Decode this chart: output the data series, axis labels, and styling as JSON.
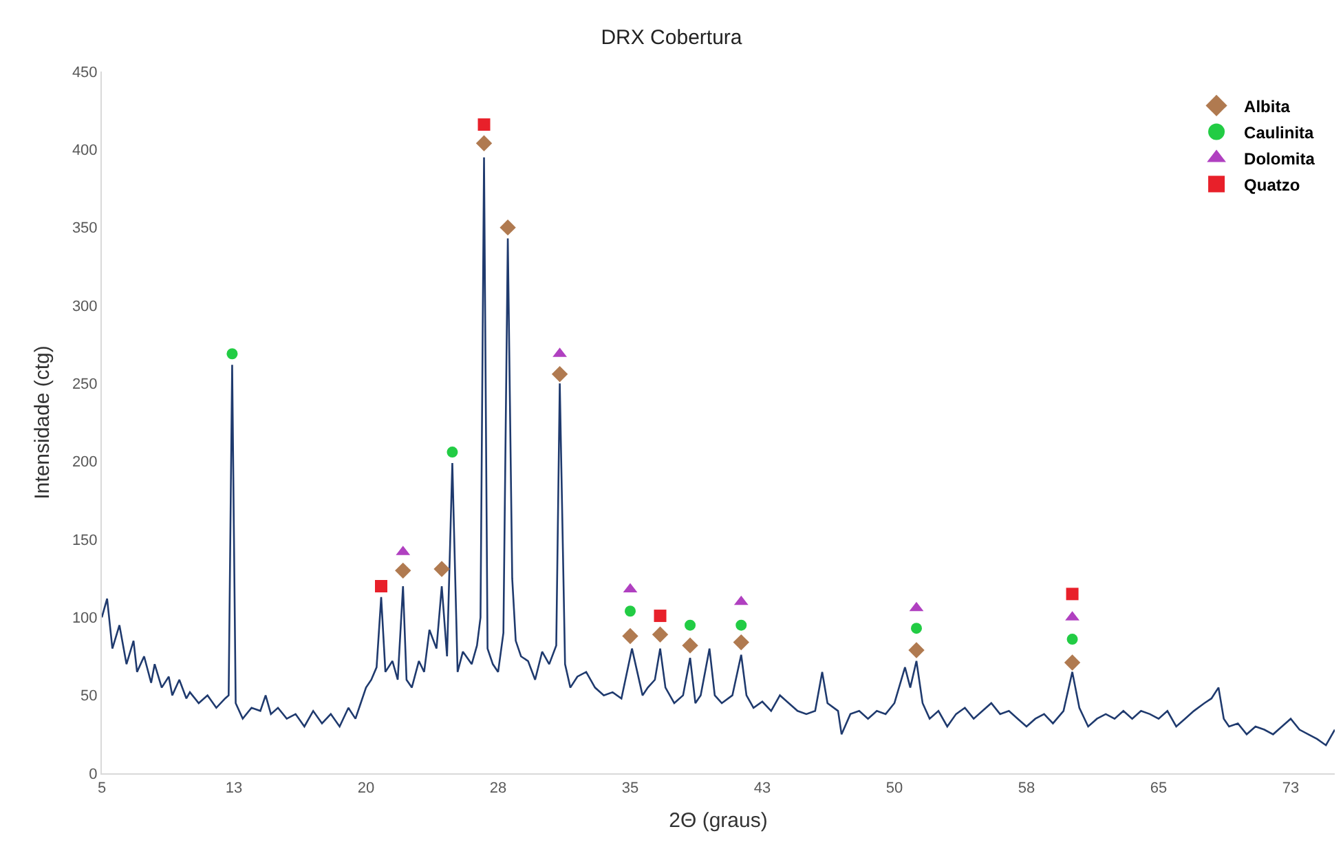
{
  "chart_data": {
    "type": "line",
    "title": "DRX Cobertura",
    "xlabel": "2Θ (graus)",
    "ylabel": "Intensidade (ctg)",
    "xlim": [
      5,
      75
    ],
    "ylim": [
      0,
      450
    ],
    "xticks": [
      5,
      {
        "value": 12.5,
        "label": "13"
      },
      20,
      {
        "value": 27.5,
        "label": "28"
      },
      35,
      {
        "value": 42.5,
        "label": "43"
      },
      50,
      {
        "value": 57.5,
        "label": "58"
      },
      65,
      {
        "value": 72.5,
        "label": "73"
      }
    ],
    "yticks": [
      0,
      50,
      100,
      150,
      200,
      250,
      300,
      350,
      400,
      450
    ],
    "grid": false,
    "legend": "top right",
    "series": [
      {
        "color": "#1f3a6e",
        "marker": "none",
        "line_style": "solid",
        "x": [
          5,
          5.3,
          5.6,
          6,
          6.4,
          6.8,
          7,
          7.4,
          7.8,
          8,
          8.4,
          8.8,
          9,
          9.4,
          9.8,
          10,
          10.5,
          11,
          11.5,
          12,
          12.2,
          12.4,
          12.6,
          13,
          13.5,
          14,
          14.3,
          14.6,
          15,
          15.5,
          16,
          16.5,
          17,
          17.5,
          18,
          18.5,
          19,
          19.4,
          19.7,
          20,
          20.3,
          20.6,
          20.86,
          21.1,
          21.5,
          21.8,
          22.1,
          22.3,
          22.6,
          23,
          23.3,
          23.6,
          24,
          24.3,
          24.6,
          24.9,
          25.2,
          25.5,
          26,
          26.3,
          26.5,
          26.7,
          26.9,
          27.2,
          27.5,
          27.8,
          28.05,
          28.3,
          28.5,
          28.8,
          29.2,
          29.6,
          30,
          30.4,
          30.8,
          31,
          31.3,
          31.6,
          32,
          32.5,
          33,
          33.5,
          34,
          34.5,
          35.1,
          35.4,
          35.7,
          36,
          36.4,
          36.7,
          37,
          37.5,
          38,
          38.4,
          38.7,
          39,
          39.5,
          39.8,
          40.2,
          40.8,
          41.3,
          41.6,
          42,
          42.5,
          43,
          43.5,
          44,
          44.5,
          45,
          45.5,
          45.9,
          46.2,
          46.8,
          47,
          47.5,
          48,
          48.5,
          49,
          49.5,
          50,
          50.6,
          50.9,
          51.25,
          51.6,
          52,
          52.5,
          53,
          53.5,
          54,
          54.5,
          55,
          55.5,
          56,
          56.5,
          57,
          57.5,
          58,
          58.5,
          59,
          59.6,
          60.1,
          60.5,
          61,
          61.5,
          62,
          62.5,
          63,
          63.5,
          64,
          64.5,
          65,
          65.5,
          66,
          66.5,
          67,
          67.6,
          68,
          68.4,
          68.7,
          69,
          69.5,
          70,
          70.5,
          71,
          71.5,
          72,
          72.5,
          73,
          73.5,
          74,
          74.5,
          75
        ],
        "values": [
          100,
          112,
          80,
          95,
          70,
          85,
          65,
          75,
          58,
          70,
          55,
          62,
          50,
          60,
          48,
          52,
          45,
          50,
          42,
          48,
          50,
          262,
          45,
          35,
          42,
          40,
          50,
          38,
          42,
          35,
          38,
          30,
          40,
          32,
          38,
          30,
          42,
          35,
          45,
          55,
          60,
          68,
          113,
          65,
          72,
          60,
          120,
          60,
          55,
          72,
          65,
          92,
          80,
          120,
          75,
          199,
          65,
          78,
          70,
          82,
          100,
          395,
          80,
          70,
          65,
          90,
          343,
          125,
          85,
          75,
          72,
          60,
          78,
          70,
          82,
          250,
          70,
          55,
          62,
          65,
          55,
          50,
          52,
          48,
          80,
          65,
          50,
          55,
          60,
          80,
          55,
          45,
          50,
          74,
          45,
          50,
          80,
          50,
          45,
          50,
          76,
          50,
          42,
          46,
          40,
          50,
          45,
          40,
          38,
          40,
          65,
          45,
          40,
          25,
          38,
          40,
          35,
          40,
          38,
          45,
          68,
          55,
          72,
          45,
          35,
          40,
          30,
          38,
          42,
          35,
          40,
          45,
          38,
          40,
          35,
          30,
          35,
          38,
          32,
          40,
          65,
          42,
          30,
          35,
          38,
          35,
          40,
          35,
          40,
          38,
          35,
          40,
          30,
          35,
          40,
          45,
          48,
          55,
          35,
          30,
          32,
          25,
          30,
          28,
          25,
          30,
          35,
          28,
          25,
          22,
          18,
          28
        ]
      },
      {
        "type": "scatter",
        "name": "Albita",
        "color": "#b07a50",
        "marker": "diamond",
        "x": [
          22.1,
          24.3,
          26.7,
          28.05,
          31,
          35,
          36.7,
          38.4,
          41.3,
          51.25,
          60.1
        ],
        "values": [
          130,
          131,
          404,
          350,
          256,
          88,
          89,
          82,
          84,
          79,
          71
        ]
      },
      {
        "type": "scatter",
        "name": "Caulinita",
        "color": "#22cc44",
        "marker": "circle",
        "x": [
          12.4,
          24.9,
          35,
          38.4,
          41.3,
          51.25,
          60.1
        ],
        "values": [
          269,
          206,
          104,
          95,
          95,
          93,
          86
        ]
      },
      {
        "type": "scatter",
        "name": "Dolomita",
        "color": "#b040c0",
        "marker": "triangle",
        "x": [
          22.1,
          31,
          35,
          41.3,
          51.25,
          60.1
        ],
        "values": [
          142,
          269,
          118,
          110,
          106,
          100
        ]
      },
      {
        "type": "scatter",
        "name": "Quatzo",
        "color": "#e8202a",
        "marker": "square",
        "x": [
          20.86,
          26.7,
          36.7,
          60.1
        ],
        "values": [
          120,
          416,
          101,
          115
        ]
      }
    ]
  }
}
